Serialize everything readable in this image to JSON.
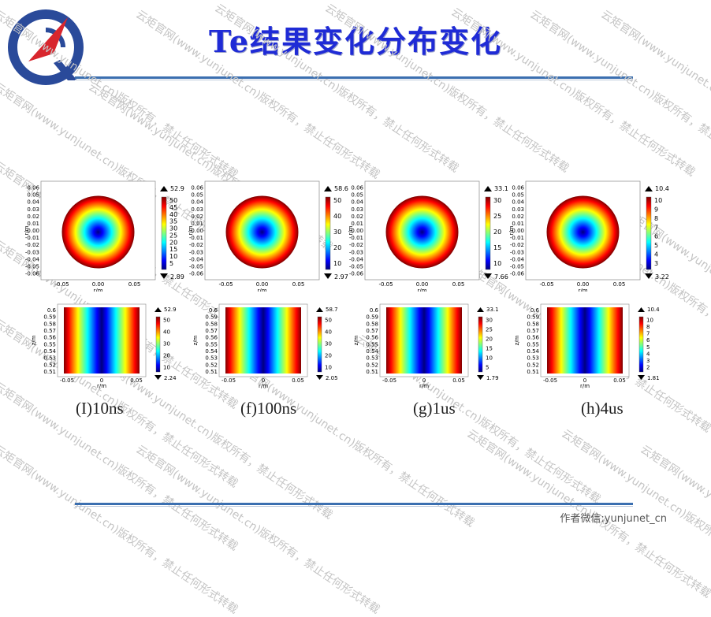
{
  "title": "Te结果变化分布变化",
  "watermark_text": "云矩官网(www.yunjunet.cn)版权所有，禁止任何形式转载",
  "footer": "作者微信:yunjunet_cn",
  "colormap": [
    "#00007f",
    "#0000ff",
    "#007fff",
    "#00ffff",
    "#7fff7f",
    "#ffff00",
    "#ff7f00",
    "#ff0000",
    "#7f0000"
  ],
  "axis": {
    "r_label": "r/m",
    "z_label": "z/m"
  },
  "top_plots": [
    {
      "id": "I",
      "max": "52.9",
      "min": "2.89",
      "ticks": [
        "50",
        "45",
        "40",
        "35",
        "30",
        "25",
        "20",
        "15",
        "10",
        "5"
      ],
      "y_ticks": [
        "0.06",
        "0.05",
        "0.04",
        "0.03",
        "0.02",
        "0.01",
        "0.00",
        "-0.01",
        "-0.02",
        "-0.03",
        "-0.04",
        "-0.05",
        "-0.06"
      ],
      "x_ticks": [
        "-0.05",
        "0.00",
        "0.05"
      ]
    },
    {
      "id": "f",
      "max": "58.6",
      "min": "2.97",
      "ticks": [
        "50",
        "40",
        "30",
        "20",
        "10"
      ],
      "y_ticks": [
        "0.06",
        "0.05",
        "0.04",
        "0.03",
        "0.02",
        "0.01",
        "0.00",
        "-0.01",
        "-0.02",
        "-0.03",
        "-0.04",
        "-0.05",
        "-0.06"
      ],
      "x_ticks": [
        "-0.05",
        "0.00",
        "0.05"
      ]
    },
    {
      "id": "g",
      "max": "33.1",
      "min": "7.66",
      "ticks": [
        "30",
        "25",
        "20",
        "15",
        "10"
      ],
      "y_ticks": [
        "0.06",
        "0.05",
        "0.04",
        "0.03",
        "0.02",
        "0.01",
        "0.00",
        "-0.01",
        "-0.02",
        "-0.03",
        "-0.04",
        "-0.05",
        "-0.06"
      ],
      "x_ticks": [
        "-0.05",
        "0.00",
        "0.05"
      ]
    },
    {
      "id": "h",
      "max": "10.4",
      "min": "3.22",
      "ticks": [
        "10",
        "9",
        "8",
        "7",
        "6",
        "5",
        "4",
        "3"
      ],
      "y_ticks": [
        "0.06",
        "0.05",
        "0.04",
        "0.03",
        "0.02",
        "0.01",
        "0.00",
        "-0.01",
        "-0.02",
        "-0.03",
        "-0.04",
        "-0.05",
        "-0.06"
      ],
      "x_ticks": [
        "-0.05",
        "0.00",
        "0.05"
      ]
    }
  ],
  "bottom_plots": [
    {
      "id": "I",
      "max": "52.9",
      "min": "2.24",
      "ticks": [
        "50",
        "40",
        "30",
        "20",
        "10"
      ],
      "y_ticks": [
        "0.6",
        "0.59",
        "0.58",
        "0.57",
        "0.56",
        "0.55",
        "0.54",
        "0.53",
        "0.52",
        "0.51"
      ],
      "x_ticks": [
        "-0.05",
        "0",
        "0.05"
      ]
    },
    {
      "id": "f",
      "max": "58.7",
      "min": "2.05",
      "ticks": [
        "50",
        "40",
        "30",
        "20",
        "10"
      ],
      "y_ticks": [
        "0.6",
        "0.59",
        "0.58",
        "0.57",
        "0.56",
        "0.55",
        "0.54",
        "0.53",
        "0.52",
        "0.51"
      ],
      "x_ticks": [
        "-0.05",
        "0",
        "0.05"
      ]
    },
    {
      "id": "g",
      "max": "33.1",
      "min": "1.79",
      "ticks": [
        "30",
        "25",
        "20",
        "15",
        "10",
        "5"
      ],
      "y_ticks": [
        "0.6",
        "0.59",
        "0.58",
        "0.57",
        "0.56",
        "0.55",
        "0.54",
        "0.53",
        "0.52",
        "0.51"
      ],
      "x_ticks": [
        "-0.05",
        "0",
        "0.05"
      ]
    },
    {
      "id": "h",
      "max": "10.4",
      "min": "1.81",
      "ticks": [
        "10",
        "8",
        "7",
        "6",
        "5",
        "4",
        "3",
        "2"
      ],
      "y_ticks": [
        "0.6",
        "0.59",
        "0.58",
        "0.57",
        "0.56",
        "0.55",
        "0.54",
        "0.53",
        "0.52",
        "0.51"
      ],
      "x_ticks": [
        "-0.05",
        "0",
        "0.05"
      ]
    }
  ],
  "captions": [
    "(I)10ns",
    "(f)100ns",
    "(g)1us",
    "(h)4us"
  ]
}
